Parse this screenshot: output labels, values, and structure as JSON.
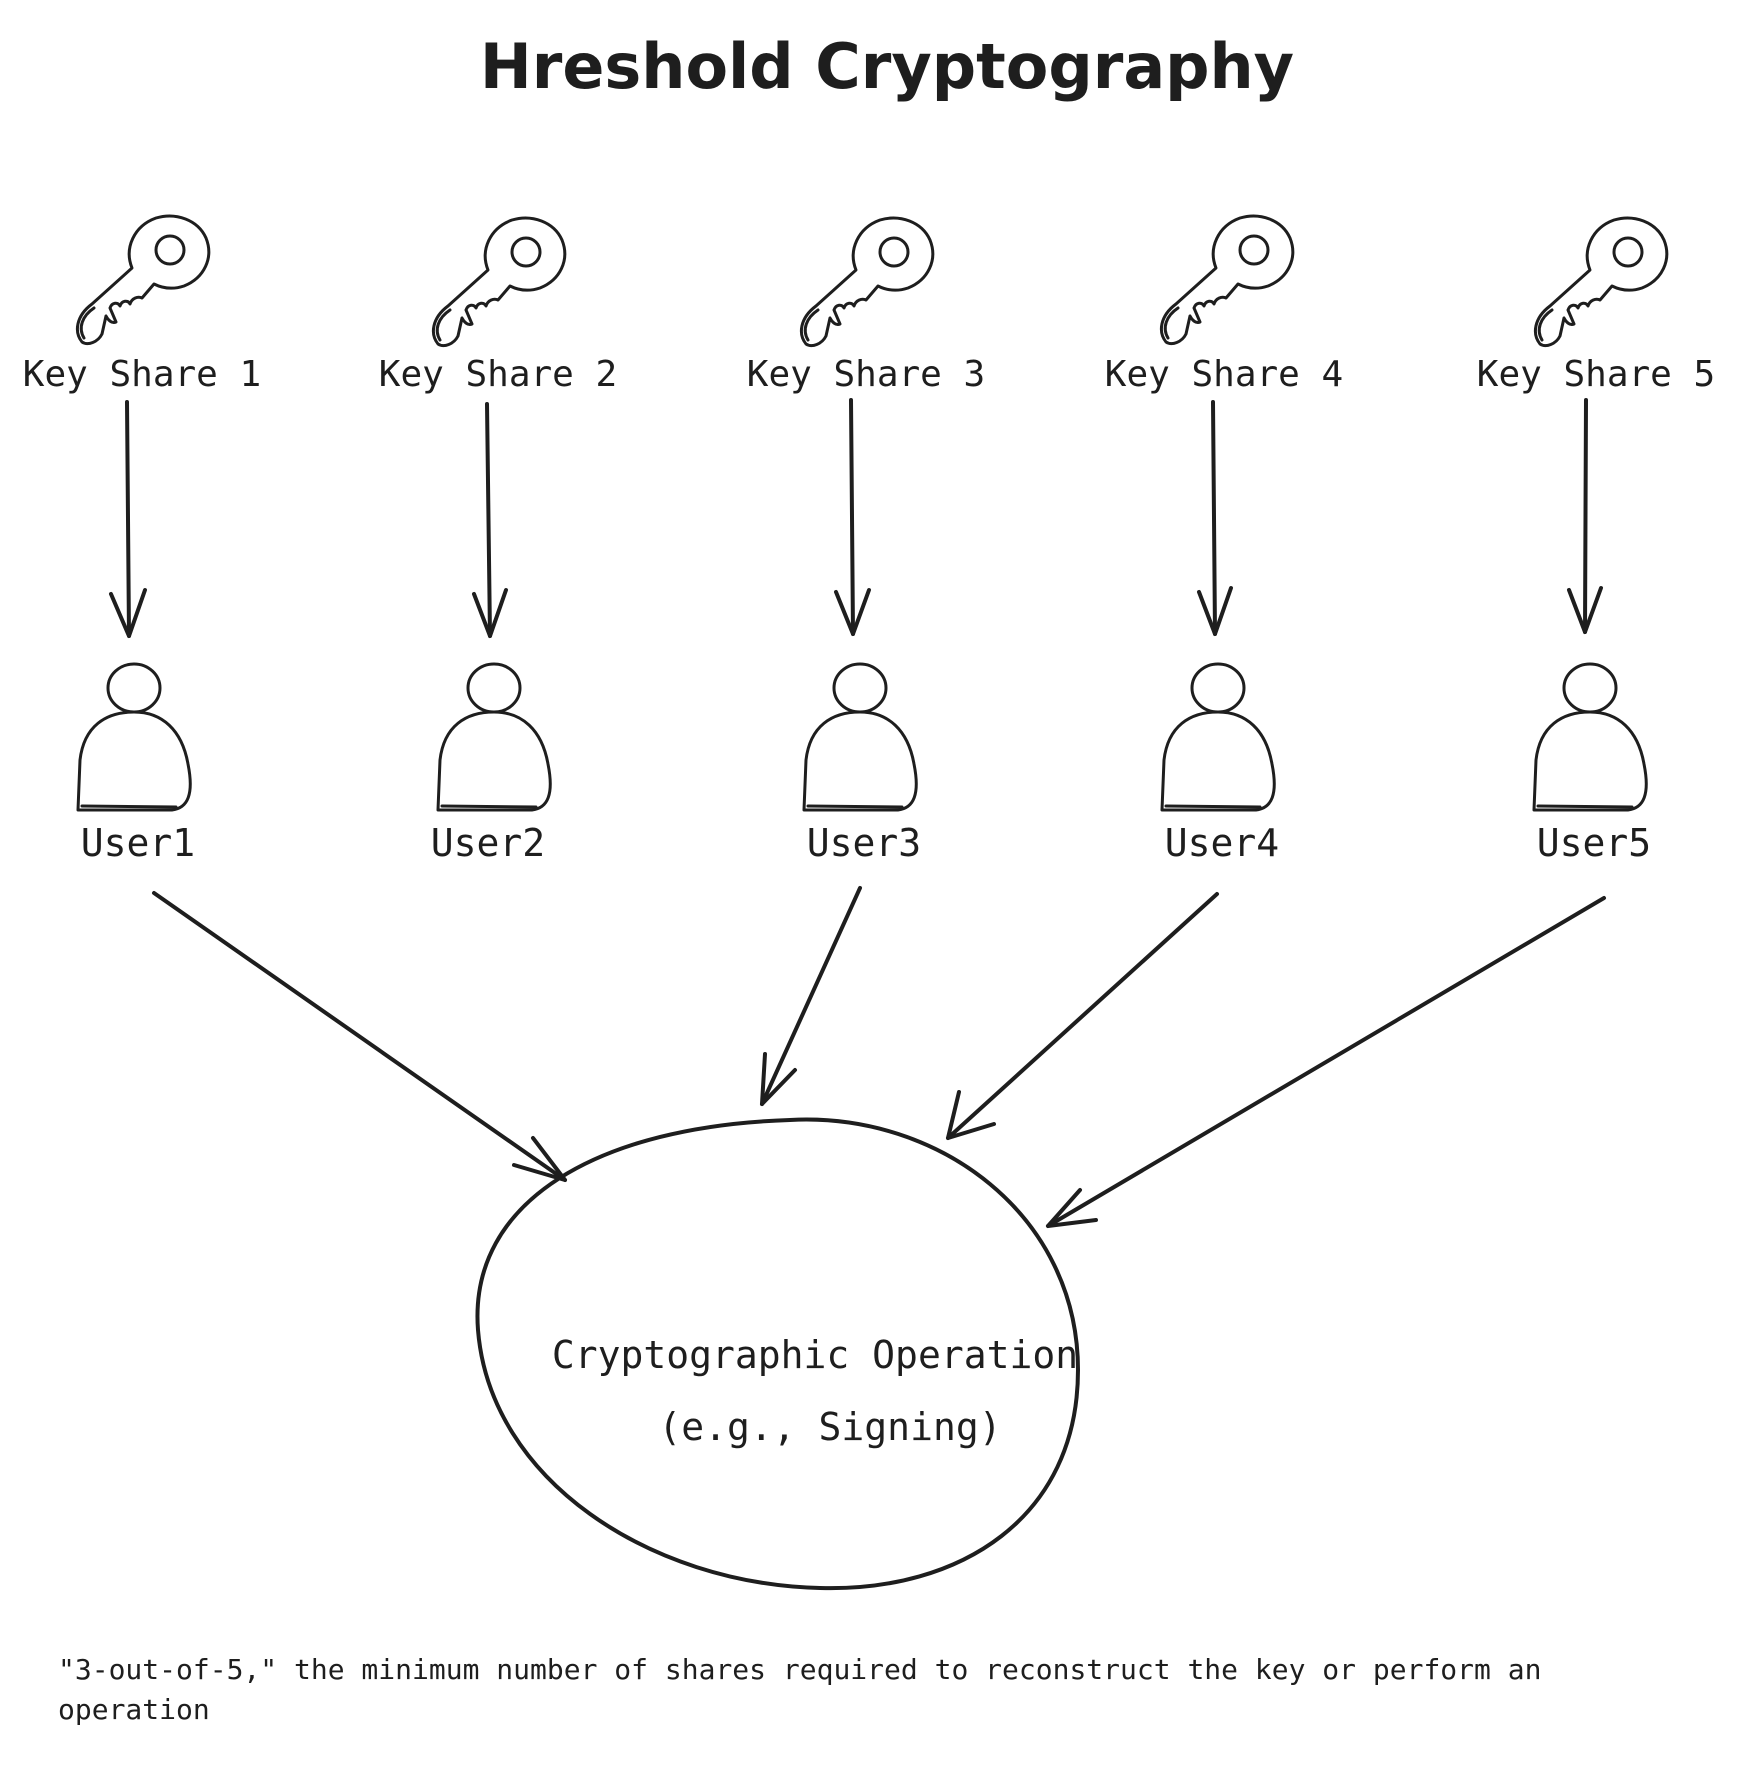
{
  "title": "Hreshold Cryptography",
  "key_shares": [
    {
      "label": "Key Share 1"
    },
    {
      "label": "Key Share 2"
    },
    {
      "label": "Key Share 3"
    },
    {
      "label": "Key Share 4"
    },
    {
      "label": "Key Share 5"
    }
  ],
  "users": [
    {
      "label": "User1"
    },
    {
      "label": "User2"
    },
    {
      "label": "User3"
    },
    {
      "label": "User4"
    },
    {
      "label": "User5"
    }
  ],
  "operation": {
    "line1": "Cryptographic Operation",
    "line2": "(e.g., Signing)"
  },
  "footnote": "\"3-out-of-5,\" the minimum number of shares required to reconstruct the key or perform an operation",
  "colors": {
    "ink": "#1e1e1e",
    "background": "#ffffff"
  },
  "icons": {
    "key": "key-icon",
    "user": "user-icon"
  }
}
